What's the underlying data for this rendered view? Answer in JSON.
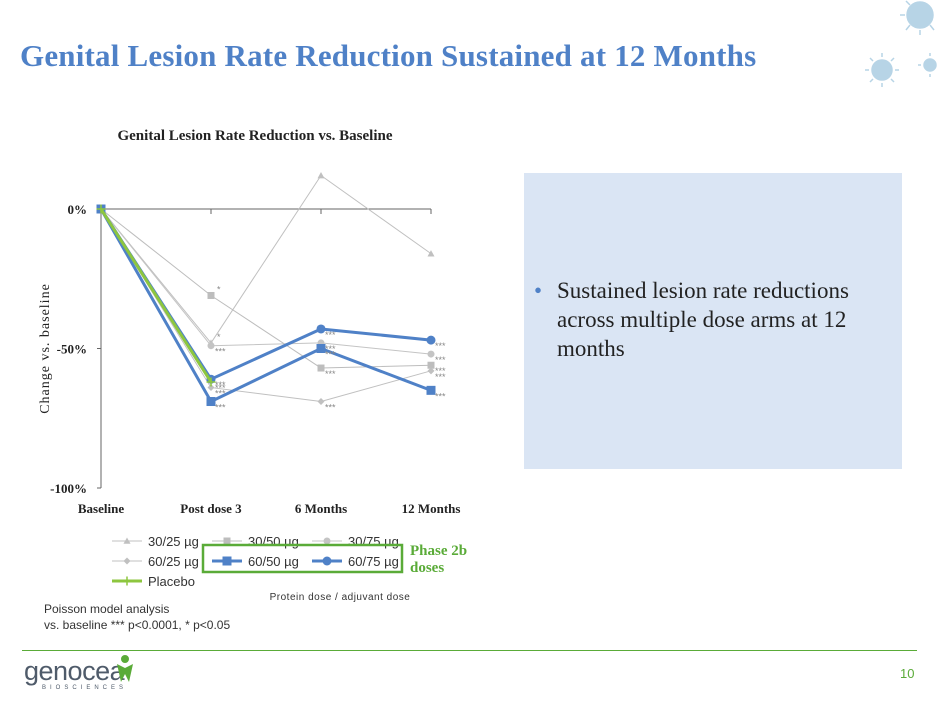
{
  "slide_title": "Genital Lesion Rate Reduction Sustained at 12 Months",
  "bullet_text": "Sustained lesion rate reductions across multiple dose arms at 12 months",
  "phase_label_line1": "Phase 2b",
  "phase_label_line2": "doses",
  "footnote_line1": "Poisson model analysis",
  "footnote_line2": "vs. baseline *** p<0.0001, * p<0.05",
  "page_number": "10",
  "logo": {
    "word": "genocea",
    "sub": "BIOSCIENCES"
  },
  "colors": {
    "title": "#4f81c7",
    "accent_green": "#5aab38",
    "box_bg": "#dae5f4",
    "highlight_line": "#4f81c7",
    "gray_line": "#bdbdbd"
  },
  "chart_data": {
    "type": "line",
    "title": "Genital Lesion Rate Reduction vs. Baseline",
    "ylabel": "Change vs. baseline",
    "xlabel": "Protein dose / adjuvant dose",
    "categories": [
      "Baseline",
      "Post dose 3",
      "6 Months",
      "12 Months"
    ],
    "ylim": [
      -100,
      0
    ],
    "yticks": [
      0,
      -50,
      -100
    ],
    "ytick_labels": [
      "0%",
      "-50%",
      "-100%"
    ],
    "series": [
      {
        "name": "30/25 µg",
        "marker": "triangle",
        "color": "#c0c0c0",
        "width": 1,
        "values": [
          0,
          -48,
          12,
          -16
        ],
        "sig": [
          "",
          "*",
          "",
          ""
        ]
      },
      {
        "name": "30/50 µg",
        "marker": "square",
        "color": "#bdbdbd",
        "width": 1,
        "values": [
          0,
          -31,
          -57,
          -56
        ],
        "sig": [
          "",
          "*",
          "***",
          "***"
        ]
      },
      {
        "name": "30/75 µg",
        "marker": "circle",
        "color": "#c4c4c4",
        "width": 1,
        "values": [
          0,
          -49,
          -48,
          -52
        ],
        "sig": [
          "",
          "***",
          "***",
          "***"
        ]
      },
      {
        "name": "60/25 µg",
        "marker": "diamond",
        "color": "#c0c0c0",
        "width": 1,
        "values": [
          0,
          -64,
          -69,
          -58
        ],
        "sig": [
          "",
          "***",
          "***",
          "***"
        ]
      },
      {
        "name": "60/50 µg",
        "marker": "square",
        "color": "#4f81c7",
        "width": 3,
        "values": [
          0,
          -69,
          -50,
          -65
        ],
        "sig": [
          "",
          "***",
          "***",
          "***"
        ]
      },
      {
        "name": "60/75 µg",
        "marker": "circle",
        "color": "#4f81c7",
        "width": 3,
        "values": [
          0,
          -61,
          -43,
          -47
        ],
        "sig": [
          "",
          "***",
          "***",
          "***"
        ]
      },
      {
        "name": "Placebo",
        "marker": "plus",
        "color": "#8dc63f",
        "width": 3,
        "values": [
          0,
          -62,
          null,
          null
        ],
        "sig": [
          "",
          "***",
          "",
          ""
        ]
      }
    ],
    "legend_position": "bottom",
    "highlighted_series": [
      "60/50 µg",
      "60/75 µg"
    ]
  }
}
